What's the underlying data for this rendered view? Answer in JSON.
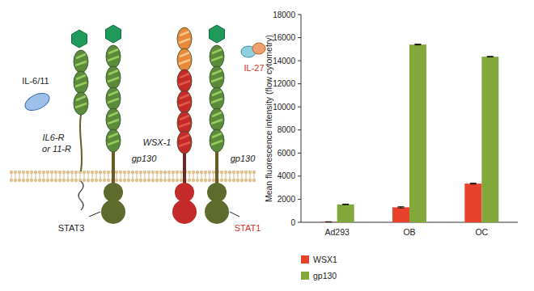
{
  "chart_data": {
    "type": "bar",
    "y_label": "Mean fluorescence intensity (flow cytometry)",
    "categories": [
      "Ad293",
      "OB",
      "OC"
    ],
    "series": [
      {
        "name": "WSX1",
        "color": "#e8412c",
        "values": [
          30,
          1300,
          3350
        ],
        "errors": [
          20,
          50,
          40
        ]
      },
      {
        "name": "gp130",
        "color": "#82a83c",
        "values": [
          1550,
          15400,
          14350
        ],
        "errors": [
          30,
          40,
          30
        ]
      }
    ],
    "ylim": [
      0,
      18000
    ],
    "yticks": [
      0,
      2000,
      4000,
      6000,
      8000,
      10000,
      12000,
      14000,
      16000,
      18000
    ],
    "grid": false,
    "legend": "bottom-left"
  },
  "diagram": {
    "receptors": [
      {
        "ligand": "IL-6/11",
        "alpha_label": [
          "IL6-R",
          "or 11-R"
        ],
        "beta_label": "gp130",
        "signal": "STAT3"
      },
      {
        "ligand": "IL-27",
        "alpha_label": [
          "WSX-1"
        ],
        "beta_label": "gp130",
        "signal": "STAT1"
      }
    ]
  }
}
